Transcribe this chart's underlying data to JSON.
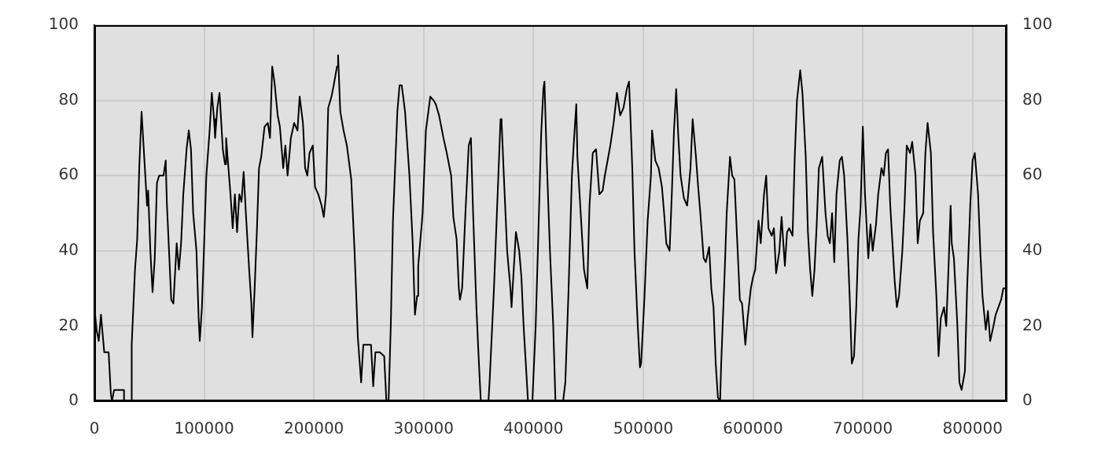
{
  "chart_data": {
    "type": "line",
    "marker": "none",
    "line_style": "solid",
    "grid": true,
    "legend": false,
    "xlim": [
      0,
      831000
    ],
    "xticks": [
      0,
      100000,
      200000,
      300000,
      400000,
      500000,
      600000,
      700000,
      800000
    ],
    "ylim": [
      0,
      100
    ],
    "yticks": [
      0,
      20,
      40,
      60,
      80,
      100
    ],
    "y2lim": [
      0,
      100
    ],
    "y2ticks": [
      0,
      20,
      40,
      60,
      80,
      100
    ],
    "series": [
      {
        "color": "#000000",
        "x": [
          0,
          2000,
          4000,
          6000,
          7000,
          9000,
          13000,
          15000,
          16000,
          18000,
          27000,
          27000,
          33000,
          34000,
          37000,
          39000,
          41000,
          43000,
          44000,
          46000,
          48000,
          49000,
          51000,
          53000,
          55000,
          57000,
          59000,
          63000,
          65000,
          66000,
          68000,
          70000,
          72000,
          75000,
          77000,
          79000,
          81000,
          84000,
          86000,
          88000,
          90000,
          93000,
          95000,
          96000,
          98000,
          100000,
          102000,
          105000,
          107000,
          109000,
          110000,
          112000,
          114000,
          117000,
          119000,
          120000,
          124000,
          126000,
          128000,
          130000,
          132000,
          134000,
          136000,
          138000,
          141000,
          143000,
          144000,
          146000,
          148000,
          150000,
          152000,
          155000,
          158000,
          160000,
          162000,
          164000,
          167000,
          169000,
          172000,
          174000,
          176000,
          179000,
          182000,
          185000,
          187000,
          190000,
          192000,
          194000,
          196000,
          199000,
          201000,
          204000,
          207000,
          209000,
          211000,
          213000,
          216000,
          218000,
          221000,
          222000,
          224000,
          227000,
          230000,
          234000,
          237000,
          240000,
          243000,
          245000,
          249000,
          252000,
          254000,
          256000,
          260000,
          264000,
          266000,
          268000,
          270000,
          272000,
          276000,
          278000,
          280000,
          283000,
          287000,
          290000,
          292000,
          294000,
          295000,
          299000,
          302000,
          306000,
          309000,
          311000,
          314000,
          318000,
          321000,
          325000,
          327000,
          330000,
          332000,
          333000,
          335000,
          338000,
          341000,
          343000,
          345000,
          348000,
          350000,
          352000,
          359000,
          360000,
          364000,
          368000,
          370000,
          371000,
          373000,
          376000,
          379000,
          380000,
          383000,
          384000,
          387000,
          389000,
          391000,
          394000,
          395000,
          399000,
          402000,
          404000,
          407000,
          409000,
          410000,
          412000,
          415000,
          418000,
          420000,
          427000,
          429000,
          432000,
          435000,
          437000,
          439000,
          440000,
          443000,
          446000,
          449000,
          451000,
          454000,
          457000,
          460000,
          463000,
          465000,
          470000,
          473000,
          476000,
          479000,
          482000,
          485000,
          487000,
          488000,
          490000,
          492000,
          495000,
          497000,
          498000,
          501000,
          504000,
          507000,
          508000,
          511000,
          514000,
          517000,
          519000,
          521000,
          524000,
          526000,
          528000,
          530000,
          532000,
          534000,
          537000,
          540000,
          543000,
          545000,
          548000,
          550000,
          552000,
          555000,
          557000,
          560000,
          562000,
          564000,
          566000,
          568000,
          570000,
          571000,
          574000,
          576000,
          579000,
          581000,
          583000,
          586000,
          588000,
          590000,
          593000,
          595000,
          598000,
          600000,
          602000,
          605000,
          607000,
          610000,
          612000,
          614000,
          617000,
          619000,
          621000,
          624000,
          626000,
          629000,
          631000,
          633000,
          636000,
          638000,
          640000,
          643000,
          645000,
          648000,
          650000,
          652000,
          654000,
          656000,
          658000,
          660000,
          663000,
          666000,
          668000,
          670000,
          672000,
          674000,
          676000,
          679000,
          681000,
          683000,
          686000,
          688000,
          690000,
          692000,
          694000,
          696000,
          698000,
          700000,
          702000,
          705000,
          707000,
          709000,
          712000,
          714000,
          717000,
          719000,
          721000,
          723000,
          725000,
          729000,
          731000,
          733000,
          736000,
          738000,
          740000,
          743000,
          745000,
          748000,
          750000,
          752000,
          755000,
          757000,
          759000,
          762000,
          764000,
          767000,
          769000,
          771000,
          774000,
          776000,
          778000,
          780000,
          781000,
          783000,
          786000,
          788000,
          790000,
          793000,
          795000,
          798000,
          800000,
          802000,
          805000,
          807000,
          809000,
          812000,
          814000,
          816000,
          819000,
          821000,
          826000,
          828000,
          831000
        ],
        "values": [
          25,
          19,
          16,
          23,
          23,
          13,
          13,
          2,
          0,
          3,
          3,
          0,
          0,
          15,
          35,
          43,
          63,
          77,
          77,
          62,
          52,
          56,
          40,
          29,
          38,
          58,
          60,
          60,
          64,
          53,
          40,
          27,
          26,
          42,
          35,
          42,
          55,
          67,
          72,
          67,
          50,
          40,
          22,
          16,
          25,
          42,
          60,
          72,
          82,
          75,
          70,
          78,
          82,
          67,
          63,
          70,
          55,
          46,
          55,
          45,
          55,
          53,
          61,
          50,
          35,
          26,
          17,
          30,
          45,
          62,
          65,
          73,
          74,
          70,
          89,
          85,
          76,
          73,
          62,
          68,
          60,
          70,
          74,
          72,
          81,
          74,
          62,
          60,
          66,
          68,
          57,
          55,
          52,
          49,
          55,
          78,
          81,
          84,
          89,
          92,
          77,
          72,
          68,
          59,
          40,
          17,
          5,
          15,
          15,
          15,
          4,
          13,
          13,
          12,
          0,
          0,
          20,
          48,
          77,
          84,
          84,
          77,
          60,
          42,
          23,
          28,
          36,
          50,
          72,
          81,
          80,
          79,
          76,
          70,
          66,
          60,
          49,
          43,
          30,
          27,
          30,
          50,
          68,
          70,
          50,
          25,
          12,
          0,
          0,
          5,
          30,
          60,
          75,
          74,
          60,
          40,
          30,
          25,
          40,
          45,
          40,
          33,
          20,
          5,
          0,
          0,
          20,
          40,
          71,
          83,
          85,
          65,
          40,
          20,
          0,
          0,
          5,
          30,
          60,
          70,
          79,
          65,
          50,
          35,
          30,
          52,
          66,
          67,
          55,
          56,
          60,
          68,
          74,
          82,
          76,
          78,
          83,
          85,
          78,
          62,
          40,
          20,
          9,
          10,
          27,
          48,
          60,
          72,
          64,
          62,
          57,
          50,
          42,
          40,
          55,
          72,
          83,
          70,
          60,
          54,
          52,
          62,
          75,
          65,
          57,
          50,
          38,
          37,
          41,
          30,
          25,
          10,
          1,
          0,
          10,
          33,
          50,
          65,
          60,
          59,
          40,
          27,
          26,
          15,
          22,
          30,
          33,
          35,
          48,
          42,
          55,
          60,
          46,
          44,
          46,
          34,
          40,
          49,
          36,
          45,
          46,
          44,
          65,
          80,
          88,
          82,
          65,
          45,
          35,
          28,
          35,
          47,
          62,
          65,
          50,
          44,
          42,
          50,
          37,
          55,
          64,
          65,
          60,
          43,
          28,
          10,
          12,
          25,
          43,
          52,
          73,
          55,
          38,
          47,
          40,
          47,
          55,
          62,
          60,
          66,
          67,
          52,
          32,
          25,
          28,
          40,
          52,
          68,
          66,
          69,
          60,
          42,
          48,
          50,
          66,
          74,
          66,
          45,
          28,
          12,
          22,
          25,
          20,
          35,
          52,
          42,
          38,
          21,
          5,
          3,
          8,
          30,
          53,
          64,
          66,
          55,
          40,
          28,
          19,
          24,
          16,
          20,
          23,
          27,
          30,
          30
        ]
      }
    ]
  }
}
